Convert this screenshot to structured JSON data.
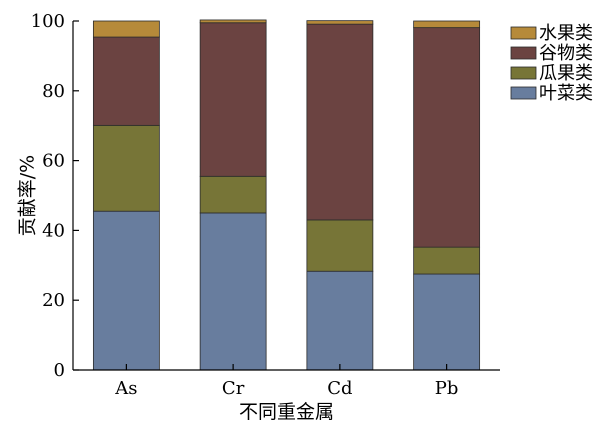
{
  "chart_data": {
    "type": "bar",
    "stacked": true,
    "categories": [
      "As",
      "Cr",
      "Cd",
      "Pb"
    ],
    "series": [
      {
        "name": "叶菜类",
        "color": "#687d9e",
        "values": [
          45.5,
          45.0,
          28.3,
          27.5
        ]
      },
      {
        "name": "瓜果类",
        "color": "#777537",
        "values": [
          24.6,
          10.5,
          14.7,
          7.7
        ]
      },
      {
        "name": "谷物类",
        "color": "#6b4341",
        "values": [
          25.3,
          44.0,
          56.1,
          62.9
        ]
      },
      {
        "name": "水果类",
        "color": "#b68a3a",
        "values": [
          4.6,
          0.8,
          1.0,
          1.9
        ]
      }
    ],
    "title": "",
    "xlabel": "不同重金属",
    "ylabel": "贡献率/%",
    "ylim": [
      0,
      100
    ],
    "yticks": [
      0,
      20,
      40,
      60,
      80,
      100
    ],
    "legend": {
      "position": "top-right",
      "order": [
        "水果类",
        "谷物类",
        "瓜果类",
        "叶菜类"
      ]
    },
    "grid": false
  }
}
